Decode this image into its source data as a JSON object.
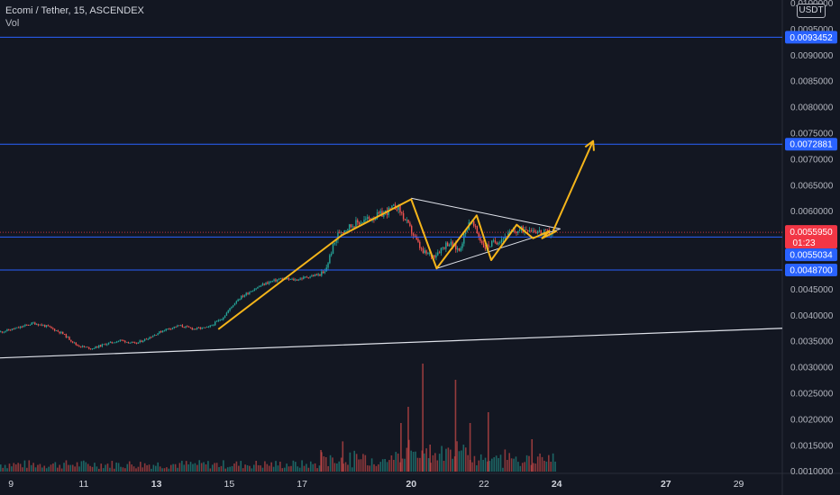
{
  "header": {
    "symbol_line": "Ecomi / Tether, 15, ASCENDEX",
    "volume_label": "Vol"
  },
  "currency_button": "USDT",
  "colors": {
    "background": "#131722",
    "horizontal_lines": "#2962ff",
    "drawing_yellow": "#f5b51a",
    "trend_white": "#e0e3eb",
    "price_tag_red": "#f23645",
    "level_tag_blue": "#2962ff",
    "up_candle": "#26a69a",
    "down_candle": "#ef5350"
  },
  "chart_data": {
    "type": "line",
    "title": "Ecomi / Tether, 15, ASCENDEX",
    "y_axis": {
      "ylim": [
        0.00096,
        0.01006
      ],
      "ticks": [
        "0.0100000",
        "0.0095000",
        "0.0090000",
        "0.0085000",
        "0.0080000",
        "0.0075000",
        "0.0070000",
        "0.0065000",
        "0.0060000",
        "0.0045000",
        "0.0040000",
        "0.0035000",
        "0.0030000",
        "0.0025000",
        "0.0020000",
        "0.0015000",
        "0.0010000"
      ]
    },
    "x_axis": {
      "xlim": [
        8.7,
        30.2
      ],
      "ticks": [
        {
          "day": 9,
          "label": "9",
          "bold": false
        },
        {
          "day": 11,
          "label": "11",
          "bold": false
        },
        {
          "day": 13,
          "label": "13",
          "bold": true
        },
        {
          "day": 15,
          "label": "15",
          "bold": false
        },
        {
          "day": 17,
          "label": "17",
          "bold": false
        },
        {
          "day": 20,
          "label": "20",
          "bold": true
        },
        {
          "day": 22,
          "label": "22",
          "bold": false
        },
        {
          "day": 24,
          "label": "24",
          "bold": true
        },
        {
          "day": 27,
          "label": "27",
          "bold": true
        },
        {
          "day": 29,
          "label": "29",
          "bold": false
        }
      ]
    },
    "series": [
      {
        "price_path": [
          [
            8.7,
            0.00368
          ],
          [
            9.2,
            0.00376
          ],
          [
            9.6,
            0.00385
          ],
          [
            10.0,
            0.00378
          ],
          [
            10.4,
            0.00365
          ],
          [
            10.8,
            0.00342
          ],
          [
            11.2,
            0.00336
          ],
          [
            11.6,
            0.00345
          ],
          [
            12.0,
            0.00352
          ],
          [
            12.4,
            0.00345
          ],
          [
            12.8,
            0.00358
          ],
          [
            13.2,
            0.00372
          ],
          [
            13.6,
            0.0038
          ],
          [
            14.0,
            0.00374
          ],
          [
            14.4,
            0.00376
          ],
          [
            14.8,
            0.00395
          ],
          [
            15.2,
            0.0043
          ],
          [
            15.6,
            0.00448
          ],
          [
            16.0,
            0.00462
          ],
          [
            16.4,
            0.0047
          ],
          [
            16.8,
            0.00468
          ],
          [
            17.2,
            0.00475
          ],
          [
            17.6,
            0.0048
          ],
          [
            17.8,
            0.00525
          ],
          [
            18.0,
            0.0056
          ],
          [
            18.4,
            0.00575
          ],
          [
            18.8,
            0.00585
          ],
          [
            19.2,
            0.00595
          ],
          [
            19.6,
            0.0061
          ],
          [
            20.0,
            0.0056
          ],
          [
            20.3,
            0.0052
          ],
          [
            20.6,
            0.00515
          ],
          [
            21.0,
            0.0054
          ],
          [
            21.3,
            0.00525
          ],
          [
            21.6,
            0.00585
          ],
          [
            22.0,
            0.0053
          ],
          [
            22.4,
            0.00545
          ],
          [
            22.8,
            0.0056
          ],
          [
            23.2,
            0.00568
          ],
          [
            23.6,
            0.00558
          ],
          [
            23.9,
            0.00558
          ]
        ]
      }
    ],
    "horizontal_levels": [
      0.0093452,
      0.0072881,
      0.0055034,
      0.00487
    ],
    "current_price": 0.005595,
    "current_price_label": "0.0055950",
    "countdown_label": "01:23",
    "level_labels": [
      "0.0093452",
      "0.0072881",
      "0.0055034",
      "0.0048700"
    ],
    "drawings": {
      "yellow_path": [
        [
          14.7,
          0.00373
        ],
        [
          18.1,
          0.00554
        ],
        [
          20.0,
          0.00623
        ],
        [
          20.7,
          0.0049
        ],
        [
          21.8,
          0.00592
        ],
        [
          22.2,
          0.00506
        ],
        [
          22.9,
          0.00574
        ],
        [
          23.35,
          0.00548
        ],
        [
          23.8,
          0.00562
        ],
        [
          23.6,
          0.00548
        ],
        [
          24.0,
          0.00562
        ]
      ],
      "yellow_arrow": [
        [
          23.9,
          0.00562
        ],
        [
          25.0,
          0.00735
        ]
      ],
      "triangle_upper": [
        [
          20.0,
          0.00625
        ],
        [
          24.1,
          0.00566
        ]
      ],
      "triangle_lower": [
        [
          20.7,
          0.0049
        ],
        [
          24.1,
          0.00566
        ]
      ],
      "white_trendline": [
        [
          8.7,
          0.00318
        ],
        [
          30.2,
          0.00375
        ]
      ]
    },
    "volume": {
      "max_value": 1.0,
      "spikes": [
        [
          19.7,
          0.45
        ],
        [
          19.9,
          0.6
        ],
        [
          20.3,
          1.0
        ],
        [
          20.5,
          0.25
        ],
        [
          21.2,
          0.85
        ],
        [
          21.6,
          0.45
        ],
        [
          22.1,
          0.55
        ],
        [
          23.3,
          0.3
        ],
        [
          17.5,
          0.2
        ],
        [
          18.1,
          0.28
        ]
      ]
    }
  }
}
